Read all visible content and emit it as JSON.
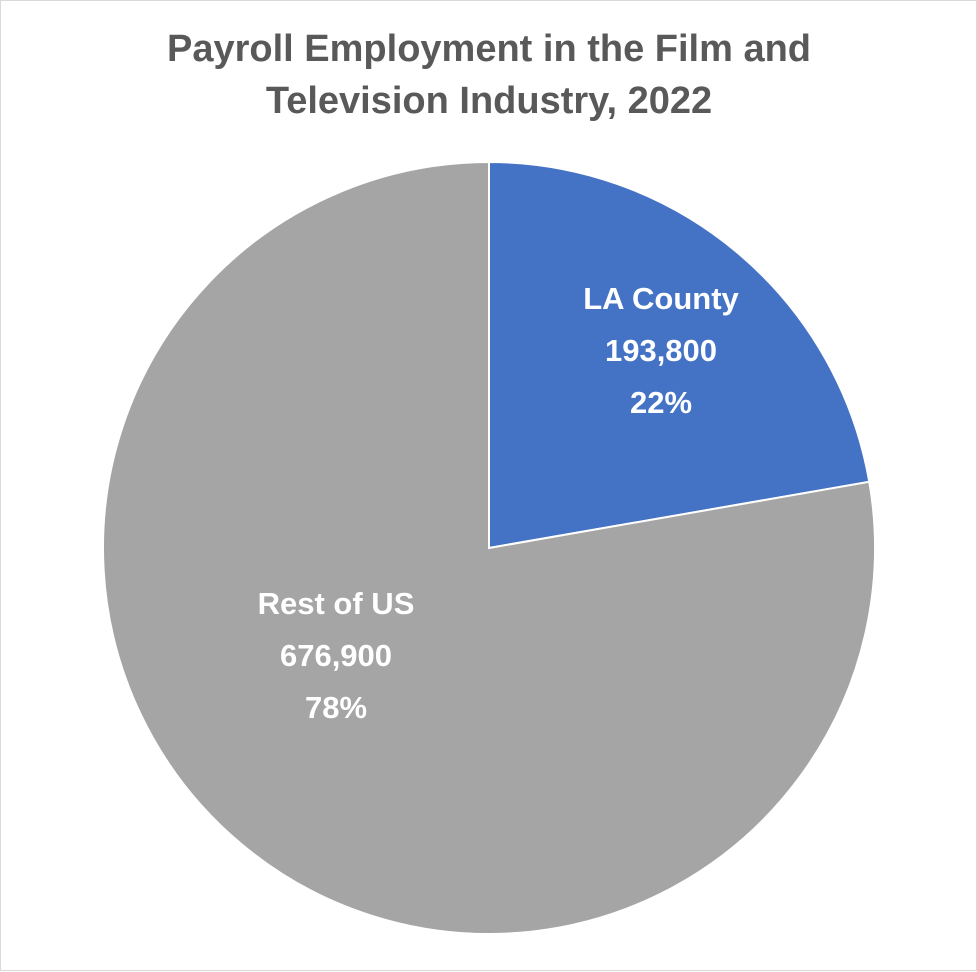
{
  "chart_data": {
    "type": "pie",
    "title": "Payroll Employment in the Film and Television Industry, 2022",
    "categories": [
      "LA County",
      "Rest of US"
    ],
    "values": [
      193800,
      676900
    ],
    "value_labels": [
      "193,800",
      "676,900"
    ],
    "percents": [
      22,
      78
    ],
    "percent_labels": [
      "22%",
      "78%"
    ],
    "colors": [
      "#4472c4",
      "#a5a5a5"
    ]
  }
}
